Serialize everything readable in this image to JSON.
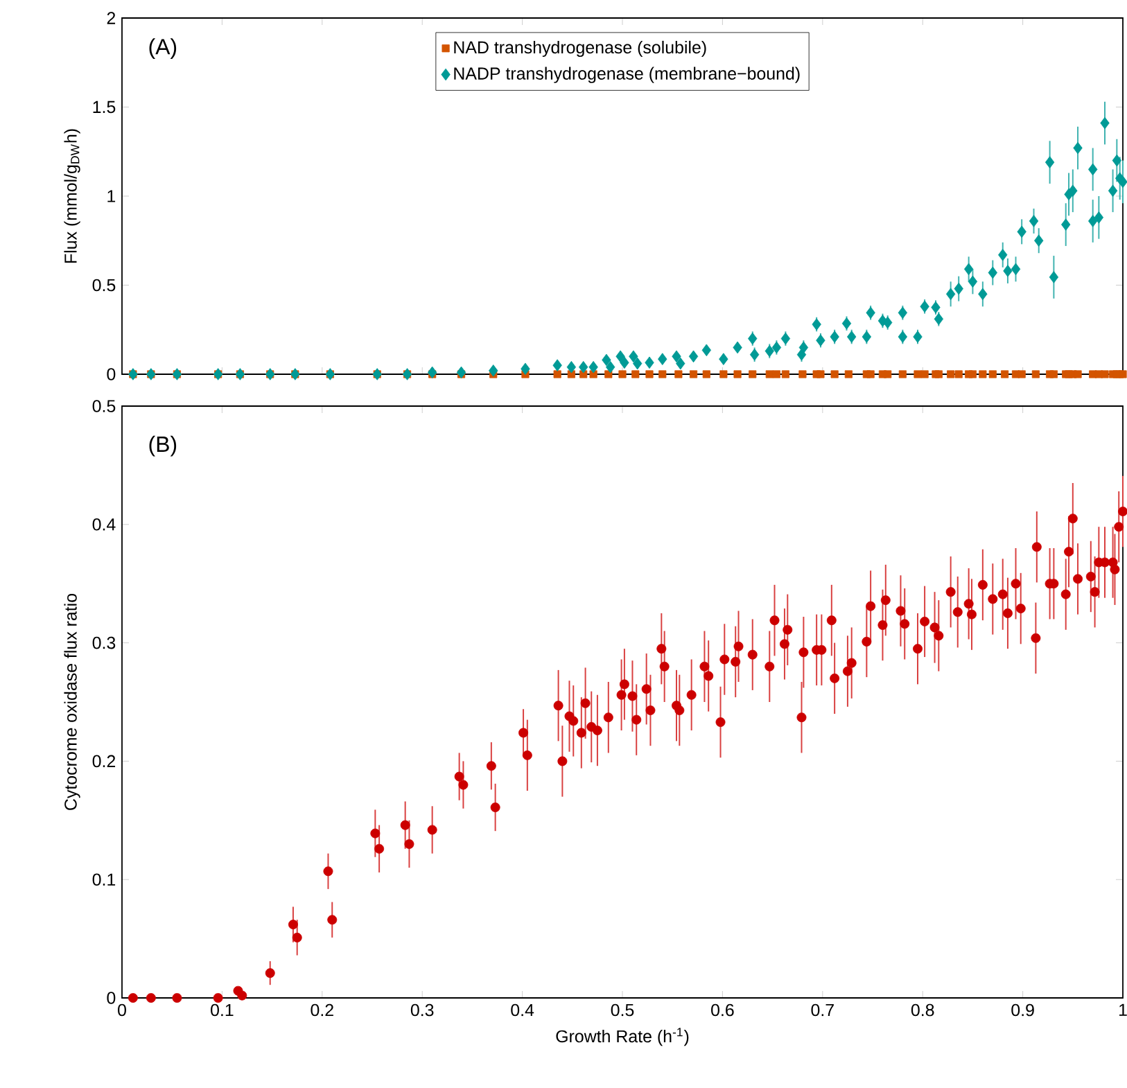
{
  "chart_data": [
    {
      "type": "scatter",
      "ylabel": "Flux (mmol/g$_{DW}$h)",
      "xlim": [
        0,
        1
      ],
      "ylim": [
        0,
        2
      ],
      "xticks": [
        0,
        0.1,
        0.2,
        0.3,
        0.4,
        0.5,
        0.6,
        0.7,
        0.8,
        0.9,
        1
      ],
      "yticks": [
        0,
        0.5,
        1,
        1.5,
        2
      ],
      "tick_labels": "y",
      "legend": "top",
      "annotations": [
        "(A)"
      ],
      "series": [
        {
          "name": "NAD transhydrogenase (solubile)",
          "color": "#d35400",
          "marker": "square",
          "x": [
            0.011,
            0.029,
            0.055,
            0.096,
            0.118,
            0.148,
            0.173,
            0.208,
            0.255,
            0.285,
            0.31,
            0.339,
            0.371,
            0.403,
            0.435,
            0.449,
            0.461,
            0.471,
            0.486,
            0.5,
            0.513,
            0.527,
            0.54,
            0.556,
            0.571,
            0.584,
            0.601,
            0.615,
            0.63,
            0.647,
            0.654,
            0.663,
            0.68,
            0.694,
            0.698,
            0.712,
            0.726,
            0.744,
            0.748,
            0.76,
            0.765,
            0.78,
            0.795,
            0.802,
            0.813,
            0.816,
            0.828,
            0.836,
            0.846,
            0.85,
            0.86,
            0.87,
            0.882,
            0.893,
            0.899,
            0.913,
            0.927,
            0.931,
            0.943,
            0.946,
            0.95,
            0.955,
            0.97,
            0.976,
            0.982,
            0.99,
            0.994,
            0.997,
            1.0
          ],
          "values": [
            0,
            0,
            0,
            0,
            0,
            0,
            0,
            0,
            0,
            0,
            0,
            0,
            0,
            0,
            0,
            0,
            0,
            0,
            0,
            0,
            0,
            0,
            0,
            0,
            0,
            0,
            0,
            0,
            0,
            0,
            0,
            0,
            0,
            0,
            0,
            0,
            0,
            0,
            0,
            0,
            0,
            0,
            0,
            0,
            0,
            0,
            0,
            0,
            0,
            0,
            0,
            0,
            0,
            0,
            0,
            0,
            0,
            0,
            0,
            0,
            0,
            0,
            0,
            0,
            0,
            0,
            0,
            0,
            0
          ]
        },
        {
          "name": "NADP transhydrogenase (membrane−bound)",
          "color": "#009a96",
          "marker": "diamond",
          "x": [
            0.011,
            0.029,
            0.055,
            0.096,
            0.118,
            0.148,
            0.173,
            0.208,
            0.255,
            0.285,
            0.31,
            0.339,
            0.371,
            0.403,
            0.435,
            0.449,
            0.461,
            0.471,
            0.484,
            0.488,
            0.498,
            0.502,
            0.511,
            0.515,
            0.527,
            0.54,
            0.554,
            0.558,
            0.571,
            0.584,
            0.601,
            0.615,
            0.63,
            0.632,
            0.647,
            0.654,
            0.663,
            0.679,
            0.681,
            0.694,
            0.698,
            0.712,
            0.724,
            0.729,
            0.744,
            0.748,
            0.76,
            0.765,
            0.78,
            0.78,
            0.795,
            0.802,
            0.813,
            0.816,
            0.828,
            0.836,
            0.846,
            0.85,
            0.86,
            0.87,
            0.88,
            0.885,
            0.893,
            0.899,
            0.911,
            0.916,
            0.927,
            0.931,
            0.943,
            0.946,
            0.95,
            0.955,
            0.97,
            0.97,
            0.976,
            0.982,
            0.99,
            0.994,
            0.997,
            1.0
          ],
          "values": [
            0,
            0,
            0,
            0,
            0,
            0,
            0,
            0,
            0,
            0,
            0.01,
            0.01,
            0.02,
            0.03,
            0.05,
            0.04,
            0.04,
            0.04,
            0.08,
            0.04,
            0.1,
            0.065,
            0.1,
            0.06,
            0.065,
            0.085,
            0.1,
            0.06,
            0.1,
            0.135,
            0.085,
            0.15,
            0.2,
            0.11,
            0.13,
            0.15,
            0.2,
            0.11,
            0.15,
            0.28,
            0.19,
            0.21,
            0.285,
            0.21,
            0.21,
            0.345,
            0.3,
            0.29,
            0.345,
            0.21,
            0.21,
            0.38,
            0.375,
            0.31,
            0.45,
            0.48,
            0.59,
            0.52,
            0.45,
            0.57,
            0.67,
            0.58,
            0.59,
            0.8,
            0.86,
            0.75,
            1.19,
            0.545,
            0.84,
            1.01,
            1.03,
            1.27,
            1.15,
            0.86,
            0.88,
            1.41,
            1.03,
            1.2,
            1.1,
            1.08
          ],
          "errors": [
            0.02,
            0.02,
            0.02,
            0.02,
            0.02,
            0.02,
            0.02,
            0.02,
            0.02,
            0.02,
            0.02,
            0.02,
            0.02,
            0.02,
            0.02,
            0.02,
            0.02,
            0.02,
            0.02,
            0.02,
            0.03,
            0.03,
            0.03,
            0.03,
            0.03,
            0.03,
            0.03,
            0.03,
            0.03,
            0.03,
            0.03,
            0.03,
            0.04,
            0.04,
            0.04,
            0.04,
            0.04,
            0.04,
            0.04,
            0.04,
            0.04,
            0.04,
            0.04,
            0.04,
            0.04,
            0.04,
            0.04,
            0.04,
            0.04,
            0.04,
            0.04,
            0.04,
            0.04,
            0.04,
            0.07,
            0.07,
            0.07,
            0.07,
            0.07,
            0.07,
            0.07,
            0.07,
            0.07,
            0.07,
            0.07,
            0.07,
            0.12,
            0.12,
            0.12,
            0.12,
            0.12,
            0.12,
            0.12,
            0.12,
            0.12,
            0.12,
            0.12,
            0.12,
            0.12,
            0.12
          ]
        }
      ]
    },
    {
      "type": "scatter",
      "xlabel": "Growth Rate (h$^{-1}$)",
      "ylabel": "Cytocrome oxidase flux ratio",
      "xlim": [
        0,
        1
      ],
      "ylim": [
        0,
        0.5
      ],
      "xticks": [
        0,
        0.1,
        0.2,
        0.3,
        0.4,
        0.5,
        0.6,
        0.7,
        0.8,
        0.9,
        1
      ],
      "yticks": [
        0,
        0.1,
        0.2,
        0.3,
        0.4,
        0.5
      ],
      "annotations": [
        "(B)"
      ],
      "series": [
        {
          "color": "#cc0000",
          "marker": "circle",
          "x": [
            0.011,
            0.029,
            0.055,
            0.096,
            0.116,
            0.12,
            0.148,
            0.171,
            0.175,
            0.206,
            0.21,
            0.253,
            0.257,
            0.283,
            0.287,
            0.31,
            0.337,
            0.341,
            0.369,
            0.373,
            0.401,
            0.405,
            0.436,
            0.44,
            0.447,
            0.451,
            0.463,
            0.459,
            0.469,
            0.475,
            0.486,
            0.499,
            0.502,
            0.51,
            0.514,
            0.524,
            0.528,
            0.539,
            0.542,
            0.554,
            0.557,
            0.569,
            0.582,
            0.586,
            0.598,
            0.602,
            0.613,
            0.616,
            0.63,
            0.647,
            0.652,
            0.662,
            0.665,
            0.679,
            0.681,
            0.694,
            0.699,
            0.709,
            0.712,
            0.725,
            0.729,
            0.744,
            0.748,
            0.76,
            0.763,
            0.778,
            0.782,
            0.795,
            0.802,
            0.812,
            0.816,
            0.828,
            0.835,
            0.846,
            0.849,
            0.86,
            0.87,
            0.88,
            0.885,
            0.893,
            0.898,
            0.913,
            0.914,
            0.927,
            0.931,
            0.943,
            0.946,
            0.95,
            0.955,
            0.968,
            0.972,
            0.976,
            0.982,
            0.99,
            0.992,
            0.996,
            1.0
          ],
          "values": [
            0,
            0,
            0,
            0,
            0.006,
            0.002,
            0.021,
            0.062,
            0.051,
            0.107,
            0.066,
            0.139,
            0.126,
            0.146,
            0.13,
            0.142,
            0.187,
            0.18,
            0.196,
            0.161,
            0.224,
            0.205,
            0.247,
            0.2,
            0.238,
            0.234,
            0.249,
            0.224,
            0.229,
            0.226,
            0.237,
            0.256,
            0.265,
            0.255,
            0.235,
            0.261,
            0.243,
            0.295,
            0.28,
            0.247,
            0.243,
            0.256,
            0.28,
            0.272,
            0.233,
            0.286,
            0.284,
            0.297,
            0.29,
            0.28,
            0.319,
            0.299,
            0.311,
            0.237,
            0.292,
            0.294,
            0.294,
            0.319,
            0.27,
            0.276,
            0.283,
            0.301,
            0.331,
            0.315,
            0.336,
            0.327,
            0.316,
            0.295,
            0.318,
            0.313,
            0.306,
            0.343,
            0.326,
            0.333,
            0.324,
            0.349,
            0.337,
            0.341,
            0.325,
            0.35,
            0.329,
            0.304,
            0.381,
            0.35,
            0.35,
            0.341,
            0.377,
            0.405,
            0.354,
            0.356,
            0.343,
            0.368,
            0.368,
            0.368,
            0.362,
            0.398,
            0.411
          ],
          "errors": [
            null,
            null,
            null,
            null,
            null,
            null,
            0.01,
            0.015,
            0.015,
            0.015,
            0.015,
            0.02,
            0.02,
            0.02,
            0.02,
            0.02,
            0.02,
            0.02,
            0.02,
            0.02,
            0.02,
            0.03,
            0.03,
            0.03,
            0.03,
            0.03,
            0.03,
            0.03,
            0.03,
            0.03,
            0.03,
            0.03,
            0.03,
            0.03,
            0.03,
            0.03,
            0.03,
            0.03,
            0.03,
            0.03,
            0.03,
            0.03,
            0.03,
            0.03,
            0.03,
            0.03,
            0.03,
            0.03,
            0.03,
            0.03,
            0.03,
            0.03,
            0.03,
            0.03,
            0.03,
            0.03,
            0.03,
            0.03,
            0.03,
            0.03,
            0.03,
            0.03,
            0.03,
            0.03,
            0.03,
            0.03,
            0.03,
            0.03,
            0.03,
            0.03,
            0.03,
            0.03,
            0.03,
            0.03,
            0.03,
            0.03,
            0.03,
            0.03,
            0.03,
            0.03,
            0.03,
            0.03,
            0.03,
            0.03,
            0.03,
            0.03,
            0.03,
            0.03,
            0.03,
            0.03,
            0.03,
            0.03,
            0.03,
            0.03,
            0.03,
            0.03,
            0.03
          ]
        }
      ]
    }
  ]
}
